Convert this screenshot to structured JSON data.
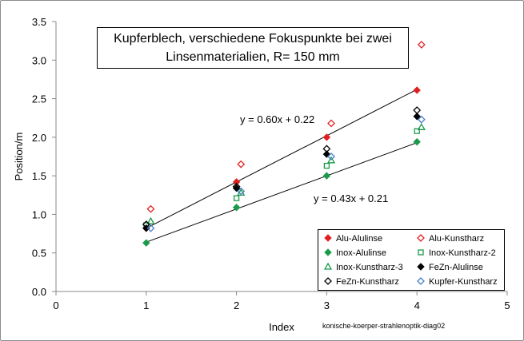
{
  "chart_data": {
    "type": "scatter",
    "title_lines": [
      "Kupferblech, verschiedene Fokuspunkte bei zwei",
      "Linsenmaterialien,  R= 150 mm"
    ],
    "xlabel": "Index",
    "ylabel": "Position/m",
    "xlim": [
      0,
      5
    ],
    "ylim": [
      0,
      3.5
    ],
    "x_ticks": [
      "0",
      "1",
      "2",
      "3",
      "4",
      "5"
    ],
    "y_ticks": [
      "0.0",
      "0.5",
      "1.0",
      "1.5",
      "2.0",
      "2.5",
      "3.0",
      "3.5"
    ],
    "grid": false,
    "legend_position": "bottom-right",
    "series": [
      {
        "name": "Alu-Alulinse",
        "color": "#e02020",
        "marker": "diamond-filled",
        "x": [
          1,
          2,
          3,
          4
        ],
        "y": [
          0.82,
          1.42,
          2.0,
          2.61
        ]
      },
      {
        "name": "Alu-Kunstharz",
        "color": "#e02020",
        "marker": "diamond-open",
        "x": [
          1.05,
          2.05,
          3.05,
          4.05
        ],
        "y": [
          1.07,
          1.65,
          2.18,
          3.2
        ]
      },
      {
        "name": "Inox-Alulinse",
        "color": "#1a9a4a",
        "marker": "diamond-filled",
        "x": [
          1,
          2,
          3,
          4
        ],
        "y": [
          0.63,
          1.09,
          1.5,
          1.94
        ]
      },
      {
        "name": "Inox-Kunstharz-2",
        "color": "#1a9a4a",
        "marker": "square-open",
        "x": [
          1,
          2,
          3,
          4
        ],
        "y": [
          0.86,
          1.21,
          1.63,
          2.08
        ]
      },
      {
        "name": "Inox-Kunstharz-3",
        "color": "#1a9a4a",
        "marker": "triangle-open",
        "x": [
          1.05,
          2.05,
          3.05,
          4.05
        ],
        "y": [
          0.91,
          1.28,
          1.7,
          2.13
        ]
      },
      {
        "name": "FeZn-Alulinse",
        "color": "#000000",
        "marker": "diamond-filled",
        "x": [
          1,
          2,
          3,
          4
        ],
        "y": [
          0.82,
          1.34,
          1.78,
          2.27
        ]
      },
      {
        "name": "FeZn-Kunstharz",
        "color": "#000000",
        "marker": "diamond-open",
        "x": [
          1,
          2,
          3,
          4
        ],
        "y": [
          0.87,
          1.36,
          1.85,
          2.35
        ]
      },
      {
        "name": "Kupfer-Kunstharz",
        "color": "#4a7ec8",
        "marker": "diamond-open",
        "x": [
          1.05,
          2.05,
          3.05,
          4.05
        ],
        "y": [
          0.82,
          1.3,
          1.75,
          2.23
        ]
      }
    ],
    "trendlines": [
      {
        "equation": "y = 0.60x + 0.22",
        "slope": 0.6,
        "intercept": 0.22,
        "x_range": [
          1,
          4
        ]
      },
      {
        "equation": "y = 0.43x + 0.21",
        "slope": 0.43,
        "intercept": 0.21,
        "x_range": [
          1,
          4
        ]
      }
    ],
    "annotation": "konische-koerper-strahlenoptik-diag02"
  }
}
